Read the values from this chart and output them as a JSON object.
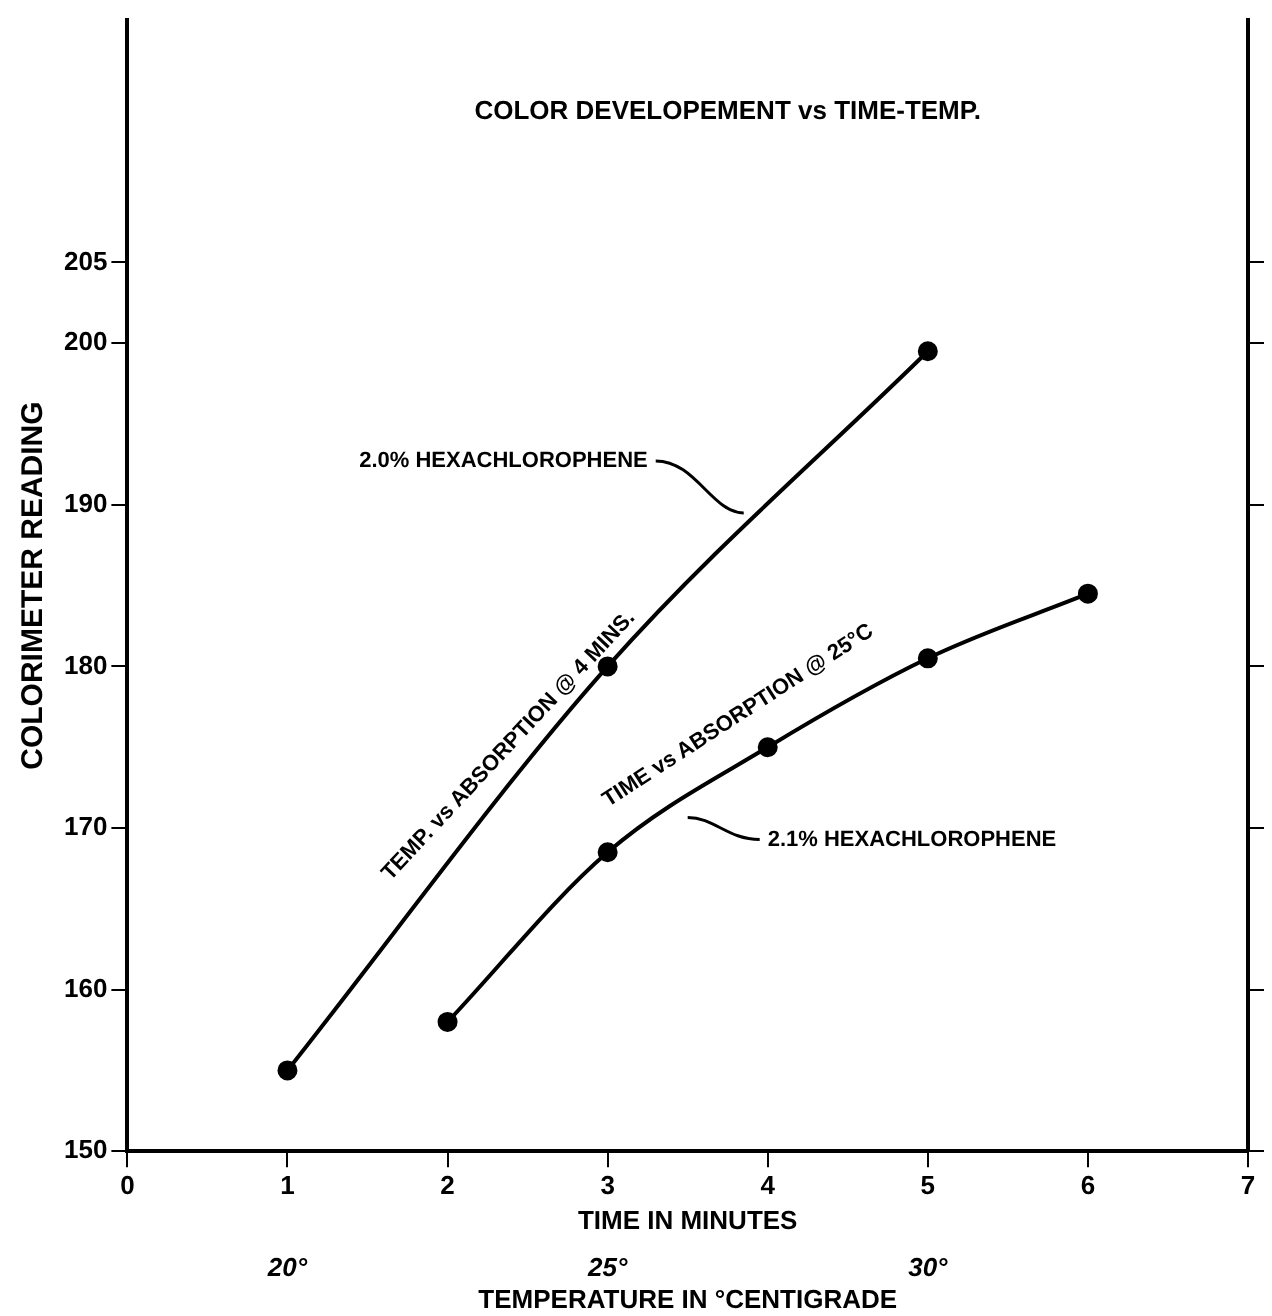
{
  "chart_data": {
    "type": "line",
    "title": "COLOR DEVELOPEMENT vs TIME-TEMP.",
    "xlabel": "TIME IN MINUTES",
    "ylabel": "COLORIMETER READING",
    "x2label": "TEMPERATURE IN °CENTIGRADE",
    "xlim": [
      0,
      7
    ],
    "xticks": [
      0,
      1,
      2,
      3,
      4,
      5,
      6,
      7
    ],
    "x2lim": [
      17.5,
      35
    ],
    "x2ticks": [
      {
        "value": 20,
        "label": "20°"
      },
      {
        "value": 25,
        "label": "25°"
      },
      {
        "value": 30,
        "label": "30°"
      }
    ],
    "ylim": [
      150,
      220
    ],
    "yticks": [
      150,
      160,
      170,
      180,
      190,
      200,
      205
    ],
    "series": [
      {
        "color": "#000000",
        "x": [
          1,
          3,
          5
        ],
        "values": [
          155,
          180,
          199.5
        ]
      },
      {
        "color": "#000000",
        "x": [
          2,
          3,
          4,
          5,
          6
        ],
        "values": [
          158,
          168.5,
          175,
          180.5,
          184.5
        ]
      }
    ],
    "annotations": [
      {
        "text": "2.0% HEXACHLOROPHENE",
        "x": 3.85,
        "y": 189.5
      },
      {
        "text": "TEMP. vs ABSORPTION @ 4 MINS.",
        "x": 2.5,
        "y": 174
      },
      "TIME vs ABSORPTION @ 25°C",
      "2.1% HEXACHLOROPHENE"
    ],
    "marker": "circle",
    "line_style": "solid",
    "grid": false,
    "legend": false
  }
}
